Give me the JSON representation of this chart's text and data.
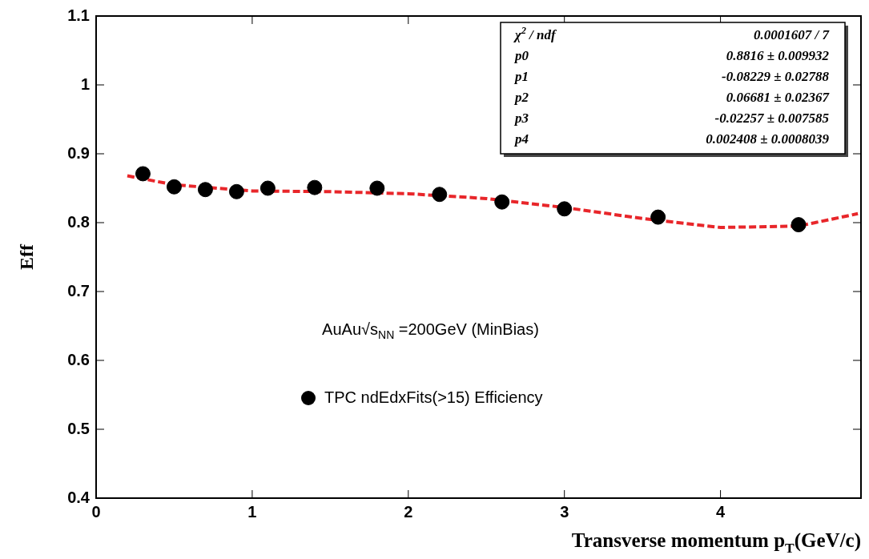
{
  "chart_data": {
    "type": "scatter",
    "xlabel": "Transverse momentum p$_{T}$(GeV/c)",
    "ylabel": "Eff",
    "xlim": [
      0,
      4.9
    ],
    "xticks": [
      0,
      1,
      2,
      3,
      4
    ],
    "ylim": [
      0.4,
      1.1
    ],
    "yticks": [
      0.4,
      0.5,
      0.6,
      0.7,
      0.8,
      0.9,
      1,
      1.1
    ],
    "grid": false,
    "legend": "bottom",
    "marker": "circle",
    "series": [
      {
        "name": "TPC ndEdxFits(>15) Efficiency",
        "color": "#000000",
        "x": [
          0.3,
          0.5,
          0.7,
          0.9,
          1.1,
          1.4,
          1.8,
          2.2,
          2.6,
          3.0,
          3.6,
          4.5
        ],
        "values": [
          0.871,
          0.852,
          0.848,
          0.845,
          0.85,
          0.851,
          0.85,
          0.841,
          0.83,
          0.82,
          0.808,
          0.797
        ]
      },
      {
        "type": "line",
        "color": "#e8262a",
        "line_style": "dashed",
        "marker": "none",
        "x": [
          0.2,
          0.5,
          1.0,
          1.5,
          2.0,
          2.5,
          3.0,
          3.5,
          4.0,
          4.5,
          4.88
        ],
        "values": [
          0.868,
          0.855,
          0.846,
          0.845,
          0.842,
          0.835,
          0.822,
          0.806,
          0.793,
          0.795,
          0.813
        ]
      }
    ],
    "annotations": [
      "χ$^{2}$ / ndf",
      "0.0001607 / 7",
      "p0",
      "0.8816 ± 0.009932",
      "p1",
      "-0.08229 ± 0.02788",
      "p2",
      "0.06681 ± 0.02367",
      "p3",
      "-0.02257 ± 0.007585",
      "p4",
      "0.002408 ± 0.0008039",
      "AuAu√s$_{NN}$ =200GeV (MinBias)"
    ]
  }
}
